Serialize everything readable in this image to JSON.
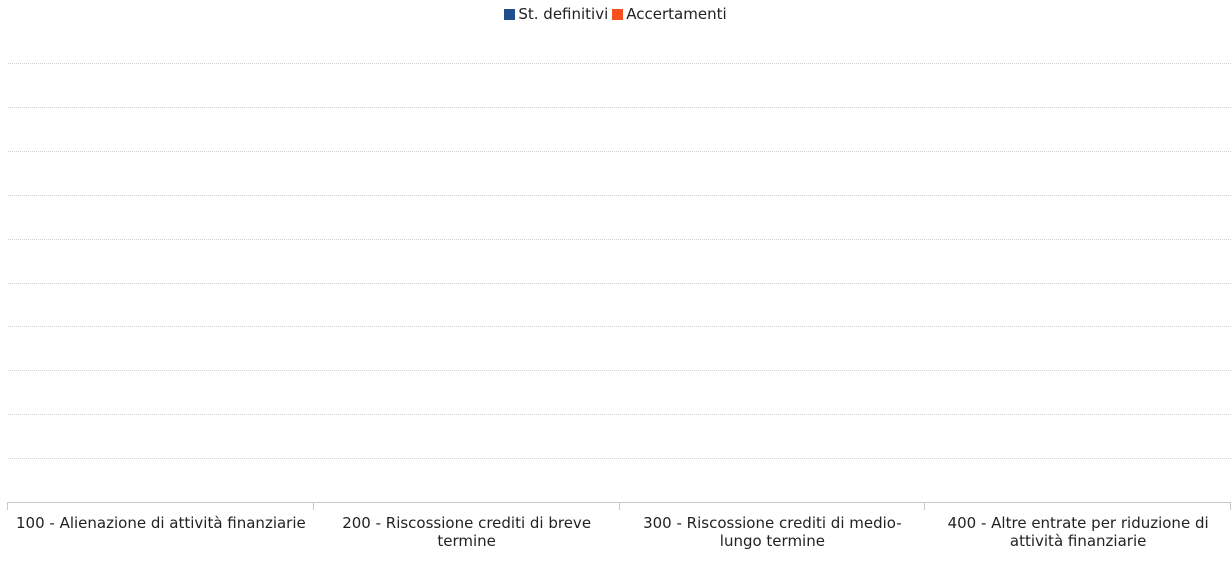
{
  "chart_data": {
    "type": "bar",
    "categories": [
      "100 - Alienazione di attività finanziarie",
      "200 - Riscossione crediti di breve termine",
      "300 - Riscossione crediti di medio-lungo termine",
      "400 - Altre entrate per riduzione di attività finanziarie"
    ],
    "series": [
      {
        "name": "St. definitivi",
        "color": "#1f4e8c",
        "values": [
          0,
          0,
          0,
          0
        ]
      },
      {
        "name": "Accertamenti",
        "color": "#f4511e",
        "values": [
          0,
          0,
          0,
          0
        ]
      }
    ],
    "ylim": [
      0,
      10
    ],
    "yticks": [
      0,
      1,
      2,
      3,
      4,
      5,
      6,
      7,
      8,
      9,
      10
    ],
    "show_ytick_labels": false,
    "grid": true,
    "legend": "top"
  }
}
